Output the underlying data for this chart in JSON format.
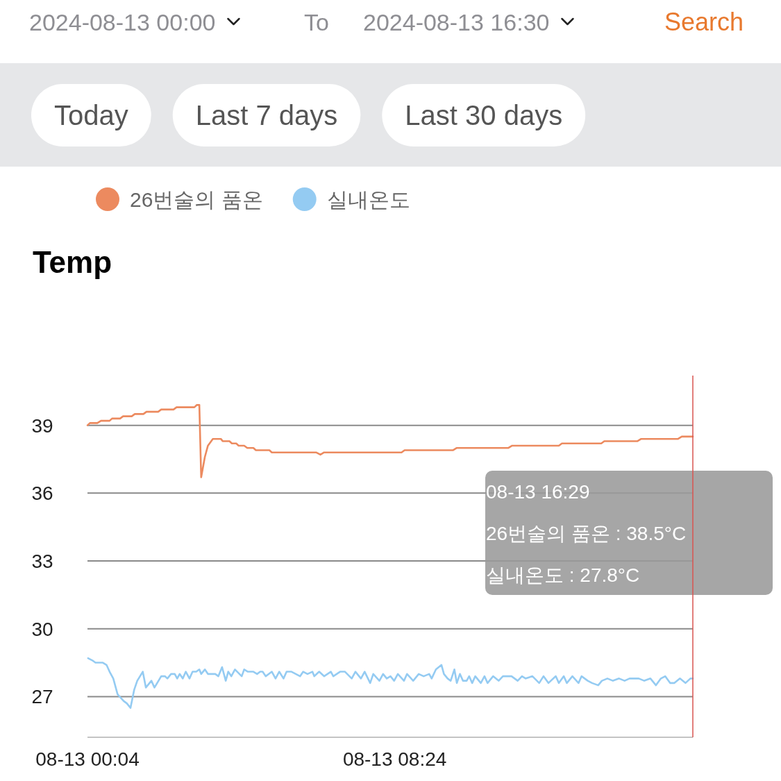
{
  "chart_data": {
    "type": "line",
    "title": "Temp",
    "annotations": [
      "2024-08-13 00:00",
      "To",
      "2024-08-13 16:30",
      "Search",
      "Today",
      "Last 7 days",
      "Last 30 days",
      "08-13 16:29",
      "26번술의 품온 : 38.5°C",
      "실내온도 : 27.8°C"
    ],
    "xlim": [
      "2024-08-13T00:04",
      "2024-08-13T16:29"
    ],
    "xticks": [
      {
        "value": "2024-08-13T00:04",
        "label": "08-13 00:04"
      },
      {
        "value": "2024-08-13T08:24",
        "label": "08-13 08:24"
      }
    ],
    "ylim": [
      25.2,
      41.2
    ],
    "yticks": [
      27,
      30,
      33,
      36,
      39
    ],
    "grid": "y",
    "legend": "top left",
    "ref_lines": [
      {
        "axis": "x",
        "value": "2024-08-13T16:29",
        "label": null,
        "color": "#d9534f"
      }
    ],
    "series": [
      {
        "name": "26번술의 품온",
        "color": "#ec8a5f",
        "x": [
          "2024-08-13T00:04",
          "2024-08-13T00:08",
          "2024-08-13T00:20",
          "2024-08-13T00:26",
          "2024-08-13T00:40",
          "2024-08-13T00:44",
          "2024-08-13T00:57",
          "2024-08-13T01:02",
          "2024-08-13T01:16",
          "2024-08-13T01:21",
          "2024-08-13T01:35",
          "2024-08-13T01:40",
          "2024-08-13T01:59",
          "2024-08-13T02:04",
          "2024-08-13T02:24",
          "2024-08-13T02:29",
          "2024-08-13T02:58",
          "2024-08-13T03:02",
          "2024-08-13T03:06",
          "2024-08-13T03:09",
          "2024-08-13T03:15",
          "2024-08-13T03:20",
          "2024-08-13T03:28",
          "2024-08-13T03:35",
          "2024-08-13T03:41",
          "2024-08-13T03:44",
          "2024-08-13T03:55",
          "2024-08-13T03:59",
          "2024-08-13T04:06",
          "2024-08-13T04:10",
          "2024-08-13T04:19",
          "2024-08-13T04:24",
          "2024-08-13T04:34",
          "2024-08-13T04:38",
          "2024-08-13T05:00",
          "2024-08-13T05:04",
          "2024-08-13T06:16",
          "2024-08-13T06:23",
          "2024-08-13T06:29",
          "2024-08-13T08:35",
          "2024-08-13T08:40",
          "2024-08-13T09:59",
          "2024-08-13T10:05",
          "2024-08-13T11:29",
          "2024-08-13T11:35",
          "2024-08-13T12:51",
          "2024-08-13T12:56",
          "2024-08-13T14:00",
          "2024-08-13T14:05",
          "2024-08-13T14:59",
          "2024-08-13T15:05",
          "2024-08-13T16:05",
          "2024-08-13T16:11",
          "2024-08-13T16:29"
        ],
        "values": [
          39.0,
          39.1,
          39.1,
          39.2,
          39.2,
          39.3,
          39.3,
          39.4,
          39.4,
          39.5,
          39.5,
          39.6,
          39.6,
          39.7,
          39.7,
          39.8,
          39.8,
          39.9,
          39.9,
          36.7,
          37.6,
          38.1,
          38.4,
          38.4,
          38.4,
          38.3,
          38.3,
          38.2,
          38.2,
          38.1,
          38.1,
          38.0,
          38.0,
          37.9,
          37.9,
          37.8,
          37.8,
          37.7,
          37.8,
          37.8,
          37.9,
          37.9,
          38.0,
          38.0,
          38.1,
          38.1,
          38.2,
          38.2,
          38.3,
          38.3,
          38.4,
          38.4,
          38.5,
          38.5
        ]
      },
      {
        "name": "실내온도",
        "color": "#94cbf2",
        "x": [
          "2024-08-13T00:05",
          "2024-08-13T00:12",
          "2024-08-13T00:17",
          "2024-08-13T00:29",
          "2024-08-13T00:35",
          "2024-08-13T00:40",
          "2024-08-13T00:46",
          "2024-08-13T00:53",
          "2024-08-13T01:03",
          "2024-08-13T01:08",
          "2024-08-13T01:14",
          "2024-08-13T01:20",
          "2024-08-13T01:25",
          "2024-08-13T01:34",
          "2024-08-13T01:39",
          "2024-08-13T01:48",
          "2024-08-13T01:53",
          "2024-08-13T02:04",
          "2024-08-13T02:10",
          "2024-08-13T02:14",
          "2024-08-13T02:20",
          "2024-08-13T02:26",
          "2024-08-13T02:30",
          "2024-08-13T02:34",
          "2024-08-13T02:39",
          "2024-08-13T02:44",
          "2024-08-13T02:50",
          "2024-08-13T02:55",
          "2024-08-13T03:01",
          "2024-08-13T03:06",
          "2024-08-13T03:09",
          "2024-08-13T03:15",
          "2024-08-13T03:20",
          "2024-08-13T03:32",
          "2024-08-13T03:37",
          "2024-08-13T03:43",
          "2024-08-13T03:49",
          "2024-08-13T03:53",
          "2024-08-13T03:58",
          "2024-08-13T04:04",
          "2024-08-13T04:15",
          "2024-08-13T04:19",
          "2024-08-13T04:25",
          "2024-08-13T04:34",
          "2024-08-13T04:40",
          "2024-08-13T04:45",
          "2024-08-13T04:49",
          "2024-08-13T04:54",
          "2024-08-13T05:04",
          "2024-08-13T05:10",
          "2024-08-13T05:16",
          "2024-08-13T05:23",
          "2024-08-13T05:28",
          "2024-08-13T05:36",
          "2024-08-13T05:50",
          "2024-08-13T05:55",
          "2024-08-13T06:02",
          "2024-08-13T06:10",
          "2024-08-13T06:13",
          "2024-08-13T06:21",
          "2024-08-13T06:29",
          "2024-08-13T06:40",
          "2024-08-13T06:44",
          "2024-08-13T06:55",
          "2024-08-13T07:03",
          "2024-08-13T07:14",
          "2024-08-13T07:20",
          "2024-08-13T07:29",
          "2024-08-13T07:35",
          "2024-08-13T07:44",
          "2024-08-13T07:49",
          "2024-08-13T07:59",
          "2024-08-13T08:05",
          "2024-08-13T08:11",
          "2024-08-13T08:17",
          "2024-08-13T08:23",
          "2024-08-13T08:29",
          "2024-08-13T08:39",
          "2024-08-13T08:44",
          "2024-08-13T08:54",
          "2024-08-13T09:03",
          "2024-08-13T09:11",
          "2024-08-13T09:20",
          "2024-08-13T09:24",
          "2024-08-13T09:31",
          "2024-08-13T09:40",
          "2024-08-13T09:44",
          "2024-08-13T09:50",
          "2024-08-13T09:55",
          "2024-08-13T10:01",
          "2024-08-13T10:05",
          "2024-08-13T10:10",
          "2024-08-13T10:15",
          "2024-08-13T10:21",
          "2024-08-13T10:25",
          "2024-08-13T10:30",
          "2024-08-13T10:35",
          "2024-08-13T10:44",
          "2024-08-13T10:50",
          "2024-08-13T10:55",
          "2024-08-13T11:04",
          "2024-08-13T11:13",
          "2024-08-13T11:20",
          "2024-08-13T11:34",
          "2024-08-13T11:44",
          "2024-08-13T11:51",
          "2024-08-13T11:57",
          "2024-08-13T12:08",
          "2024-08-13T12:19",
          "2024-08-13T12:26",
          "2024-08-13T12:34",
          "2024-08-13T12:46",
          "2024-08-13T12:51",
          "2024-08-13T12:59",
          "2024-08-13T13:04",
          "2024-08-13T13:13",
          "2024-08-13T13:23",
          "2024-08-13T13:28",
          "2024-08-13T13:38",
          "2024-08-13T13:45",
          "2024-08-13T13:55",
          "2024-08-13T14:01",
          "2024-08-13T14:10",
          "2024-08-13T14:19",
          "2024-08-13T14:29",
          "2024-08-13T14:38",
          "2024-08-13T14:46",
          "2024-08-13T15:01",
          "2024-08-13T15:10",
          "2024-08-13T15:20",
          "2024-08-13T15:29",
          "2024-08-13T15:37",
          "2024-08-13T15:44",
          "2024-08-13T15:52",
          "2024-08-13T15:59",
          "2024-08-13T16:08",
          "2024-08-13T16:17",
          "2024-08-13T16:25",
          "2024-08-13T16:29"
        ],
        "values": [
          28.7,
          28.6,
          28.5,
          28.5,
          28.4,
          28.1,
          27.8,
          27.1,
          26.8,
          26.7,
          26.5,
          27.3,
          27.7,
          28.1,
          27.4,
          27.7,
          27.4,
          27.9,
          27.9,
          27.8,
          28.0,
          28.0,
          27.8,
          28.0,
          27.8,
          28.1,
          27.8,
          28.1,
          28.1,
          28.2,
          28.0,
          28.2,
          28.0,
          28.0,
          27.9,
          28.3,
          27.7,
          28.1,
          27.9,
          28.2,
          27.9,
          28.2,
          28.1,
          28.1,
          28.0,
          28.1,
          28.1,
          27.9,
          28.1,
          27.8,
          28.1,
          27.8,
          28.1,
          28.1,
          27.9,
          28.1,
          28.0,
          28.1,
          27.9,
          28.1,
          27.9,
          28.1,
          27.9,
          28.1,
          28.1,
          27.8,
          28.1,
          27.8,
          28.1,
          27.6,
          28.0,
          27.7,
          28.0,
          27.8,
          27.9,
          27.7,
          28.0,
          27.7,
          28.0,
          27.7,
          28.0,
          27.9,
          28.0,
          27.8,
          28.2,
          28.4,
          28.0,
          27.8,
          27.7,
          28.2,
          27.6,
          28.0,
          27.7,
          27.7,
          27.9,
          27.6,
          27.9,
          27.6,
          27.9,
          27.6,
          27.9,
          27.7,
          27.9,
          27.9,
          27.7,
          27.9,
          27.8,
          27.9,
          27.6,
          27.9,
          27.6,
          27.9,
          27.6,
          27.9,
          27.6,
          27.9,
          27.6,
          27.9,
          27.7,
          27.6,
          27.5,
          27.7,
          27.8,
          27.7,
          27.8,
          27.7,
          27.8,
          27.8,
          27.7,
          27.8,
          27.5,
          27.8,
          27.9,
          27.6,
          27.6,
          27.8,
          27.6,
          27.8,
          27.8
        ]
      }
    ]
  }
}
